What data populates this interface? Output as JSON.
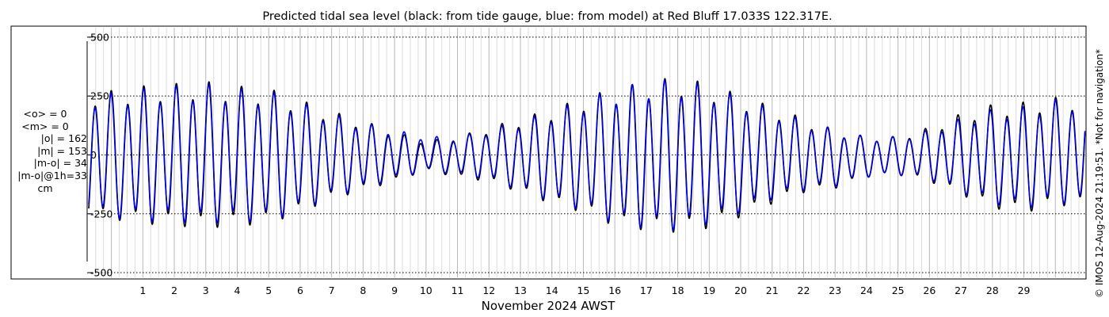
{
  "chart_data": {
    "type": "line",
    "title": "Predicted tidal sea level (black: from tide gauge, blue: from model) at Red Bluff 17.033S 122.317E.",
    "xlabel": "November 2024 AWST",
    "ylabel": "",
    "x_range_days": [
      -0.72,
      30.95
    ],
    "x_ticks": [
      1,
      2,
      3,
      4,
      5,
      6,
      7,
      8,
      9,
      10,
      11,
      12,
      13,
      14,
      15,
      16,
      17,
      18,
      19,
      20,
      21,
      22,
      23,
      24,
      25,
      26,
      27,
      28,
      29
    ],
    "x_tick_labels": [
      "1",
      "2",
      "3",
      "4",
      "5",
      "6",
      "7",
      "8",
      "9",
      "10",
      "11",
      "12",
      "13",
      "14",
      "15",
      "16",
      "17",
      "18",
      "19",
      "20",
      "21",
      "22",
      "23",
      "24",
      "25",
      "26",
      "27",
      "28",
      "29"
    ],
    "ylim": [
      -520,
      540
    ],
    "y_ticks": [
      500,
      250,
      0,
      -250,
      -500
    ],
    "y_tick_labels": [
      "500",
      "250",
      "0",
      "-250",
      "-500"
    ],
    "grid": true,
    "series": [
      {
        "name": "black: from tide gauge",
        "color": "#000000",
        "x_day": [
          0,
          1,
          2,
          3,
          4,
          5,
          6,
          7,
          8,
          9,
          10,
          11,
          12,
          13,
          14,
          15,
          16,
          17,
          18,
          19,
          20,
          21,
          22,
          23,
          24,
          25,
          26,
          27,
          28,
          29,
          30
        ],
        "high_water_cm": [
          280,
          300,
          310,
          320,
          300,
          290,
          240,
          190,
          150,
          100,
          60,
          80,
          120,
          160,
          200,
          250,
          290,
          320,
          340,
          310,
          260,
          210,
          160,
          110,
          80,
          80,
          120,
          180,
          220,
          230,
          250
        ],
        "low_water_cm": [
          -290,
          -310,
          -320,
          -330,
          -320,
          -310,
          -260,
          -200,
          -160,
          -120,
          -70,
          -100,
          -120,
          -170,
          -220,
          -260,
          -320,
          -340,
          -350,
          -330,
          -280,
          -220,
          -170,
          -150,
          -100,
          -90,
          -120,
          -180,
          -240,
          -260,
          -230
        ]
      },
      {
        "name": "blue: from model",
        "color": "#0000dd",
        "x_day": [
          0,
          1,
          2,
          3,
          4,
          5,
          6,
          7,
          8,
          9,
          10,
          11,
          12,
          13,
          14,
          15,
          16,
          17,
          18,
          19,
          20,
          21,
          22,
          23,
          24,
          25,
          26,
          27,
          28,
          29,
          30
        ],
        "high_water_cm": [
          270,
          290,
          300,
          310,
          290,
          280,
          230,
          180,
          140,
          110,
          80,
          80,
          110,
          150,
          190,
          240,
          290,
          320,
          330,
          300,
          250,
          200,
          150,
          110,
          80,
          80,
          110,
          160,
          200,
          210,
          240
        ],
        "low_water_cm": [
          -280,
          -300,
          -300,
          -310,
          -300,
          -300,
          -250,
          -190,
          -150,
          -110,
          -70,
          -90,
          -110,
          -160,
          -210,
          -250,
          -310,
          -330,
          -340,
          -310,
          -260,
          -200,
          -160,
          -140,
          -100,
          -90,
          -110,
          -170,
          -220,
          -240,
          -220
        ]
      }
    ]
  },
  "stats": {
    "mean_o": "<o> = 0",
    "mean_m": "<m> = 0",
    "abs_o": "|o| = 162",
    "abs_m": "|m| = 153",
    "abs_mo": "|m-o| = 34",
    "abs_mo_1h": "|m-o|@1h=33",
    "unit": "cm"
  },
  "credit": "© IMOS 12-Aug-2024 21:19:51. *Not for navigation*"
}
